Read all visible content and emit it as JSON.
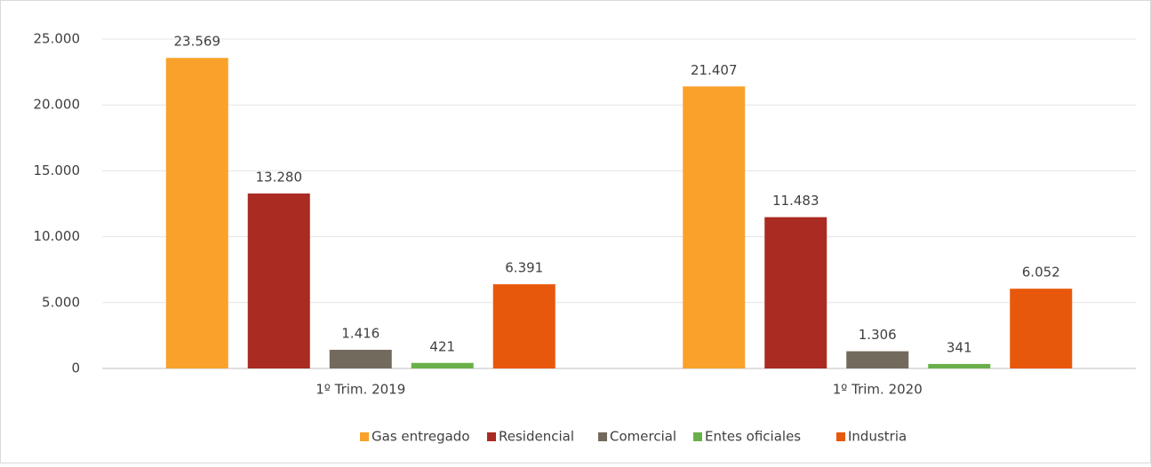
{
  "chart_data": {
    "type": "bar",
    "categories": [
      "1º Trim. 2019",
      "1º Trim. 2020"
    ],
    "series": [
      {
        "name": "Gas entregado",
        "color": "#f9a12a",
        "values": [
          23569,
          21407
        ],
        "value_labels": [
          "23.569",
          "21.407"
        ]
      },
      {
        "name": "Residencial",
        "color": "#a92b22",
        "values": [
          13280,
          11483
        ],
        "value_labels": [
          "13.280",
          "11.483"
        ]
      },
      {
        "name": "Comercial",
        "color": "#736a5e",
        "values": [
          1416,
          1306
        ],
        "value_labels": [
          "1.416",
          "1.306"
        ]
      },
      {
        "name": "Entes oficiales",
        "color": "#6ab04a",
        "values": [
          421,
          341
        ],
        "value_labels": [
          "421",
          "341"
        ]
      },
      {
        "name": "Industria",
        "color": "#e8580c",
        "values": [
          6391,
          6052
        ],
        "value_labels": [
          "6.391",
          "6.052"
        ]
      }
    ],
    "ylim": [
      0,
      25000
    ],
    "yticks": [
      0,
      {
        "value": 5000,
        "label": "5.000"
      },
      {
        "value": 10000,
        "label": "10.000"
      },
      {
        "value": 15000,
        "label": "15.000"
      },
      {
        "value": 20000,
        "label": "20.000"
      },
      {
        "value": 25000,
        "label": "25.000"
      }
    ],
    "grid": true,
    "legend": "bottom"
  }
}
